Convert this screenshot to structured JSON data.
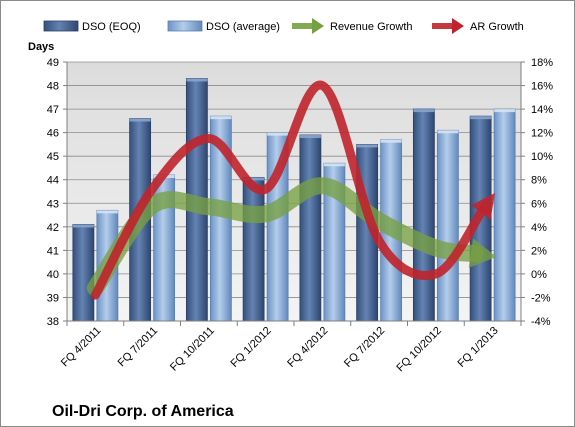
{
  "chart_data": {
    "type": "bar",
    "title": "",
    "company_label": "Oil-Dri Corp. of America",
    "ylabel_left": "Days",
    "categories": [
      "FQ 4/2011",
      "FQ 7/2011",
      "FQ 10/2011",
      "FQ 1/2012",
      "FQ 4/2012",
      "FQ 7/2012",
      "FQ 10/2012",
      "FQ 1/2013"
    ],
    "left_axis": {
      "min": 38,
      "max": 49,
      "step": 1
    },
    "right_axis": {
      "min": -4,
      "max": 18,
      "step": 2,
      "suffix": "%"
    },
    "grid": true,
    "legend_position": "top",
    "series": [
      {
        "name": "DSO (EOQ)",
        "type": "bar",
        "axis": "left",
        "color": "#4a6a9a",
        "values": [
          42.1,
          46.6,
          48.3,
          44.1,
          45.9,
          45.5,
          47.0,
          46.7
        ]
      },
      {
        "name": "DSO (average)",
        "type": "bar",
        "axis": "left",
        "color": "#8db4e2",
        "values": [
          42.7,
          44.2,
          46.7,
          46.0,
          44.7,
          45.7,
          46.1,
          47.0
        ]
      },
      {
        "name": "Revenue Growth",
        "type": "line",
        "axis": "right",
        "color": "#77a043",
        "values": [
          -1.2,
          5.8,
          5.7,
          5.1,
          7.5,
          4.5,
          2.2,
          1.5
        ]
      },
      {
        "name": "AR Growth",
        "type": "line",
        "axis": "right",
        "color": "#c0232b",
        "values": [
          -1.8,
          7.2,
          11.5,
          7.2,
          16.0,
          2.8,
          0.0,
          6.6
        ]
      }
    ]
  }
}
